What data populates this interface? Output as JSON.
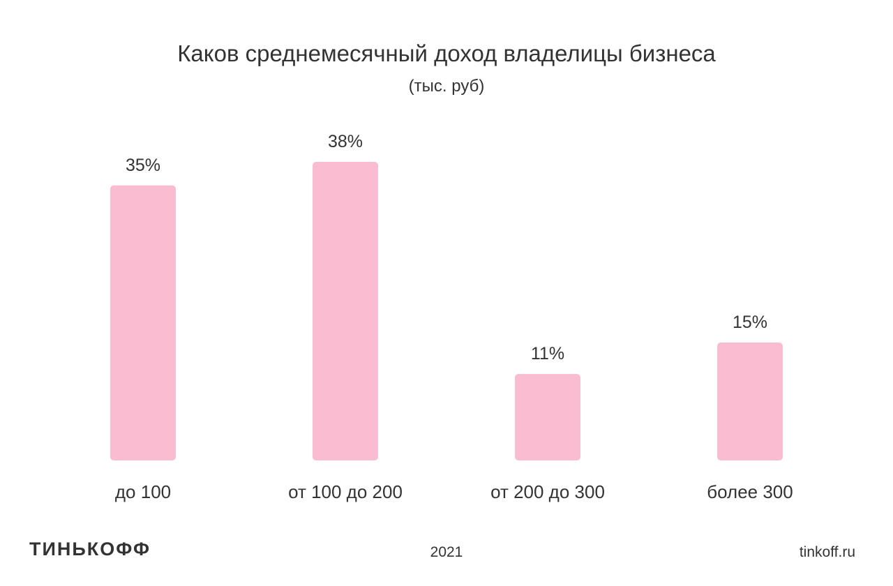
{
  "chart_data": {
    "type": "bar",
    "title": "Каков среднемесячный доход владелицы бизнеса",
    "subtitle": "(тыс. руб)",
    "categories": [
      "до 100",
      "от 100 до 200",
      "от 200 до 300",
      "более 300"
    ],
    "values": [
      35,
      38,
      11,
      15
    ],
    "data_labels": [
      "35%",
      "38%",
      "11%",
      "15%"
    ],
    "xlabel": "",
    "ylabel": "",
    "ylim": [
      0,
      38
    ],
    "grid": false,
    "bar_color": "#f9bcd0",
    "text_color": "#333333"
  },
  "footer": {
    "logo": "ТИНЬКОФФ",
    "year": "2021",
    "site": "tinkoff.ru"
  }
}
